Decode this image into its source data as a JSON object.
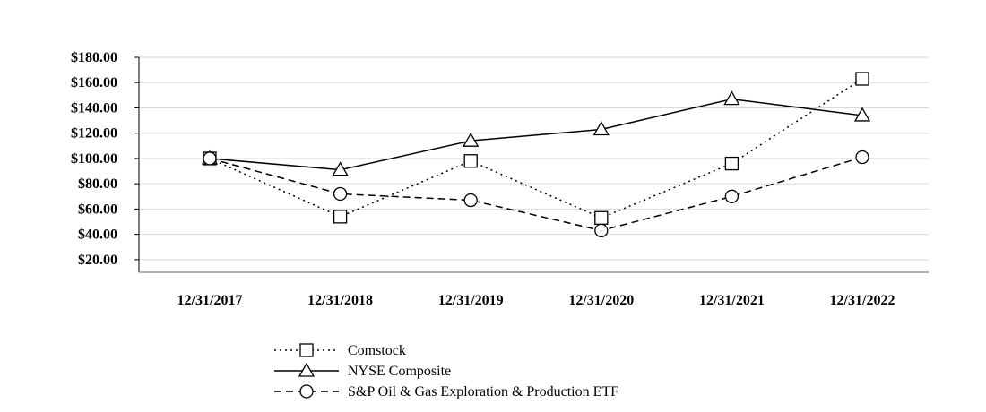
{
  "chart_data": {
    "type": "line",
    "categories": [
      "12/31/2017",
      "12/31/2018",
      "12/31/2019",
      "12/31/2020",
      "12/31/2021",
      "12/31/2022"
    ],
    "y_ticks": [
      "$20.00",
      "$40.00",
      "$60.00",
      "$80.00",
      "$100.00",
      "$120.00",
      "$140.00",
      "$160.00",
      "$180.00"
    ],
    "ylim": [
      10,
      180
    ],
    "grid": true,
    "legend_position": "bottom",
    "series": [
      {
        "name": "Comstock",
        "marker": "square",
        "line_style": "dotted",
        "values": [
          100,
          54,
          98,
          53,
          96,
          163
        ]
      },
      {
        "name": "NYSE Composite",
        "marker": "triangle",
        "line_style": "solid",
        "values": [
          100,
          91,
          114,
          123,
          147,
          134
        ]
      },
      {
        "name": "S&P Oil & Gas Exploration & Production ETF",
        "marker": "circle",
        "line_style": "dashed",
        "values": [
          100,
          72,
          67,
          43,
          70,
          101
        ]
      }
    ]
  }
}
